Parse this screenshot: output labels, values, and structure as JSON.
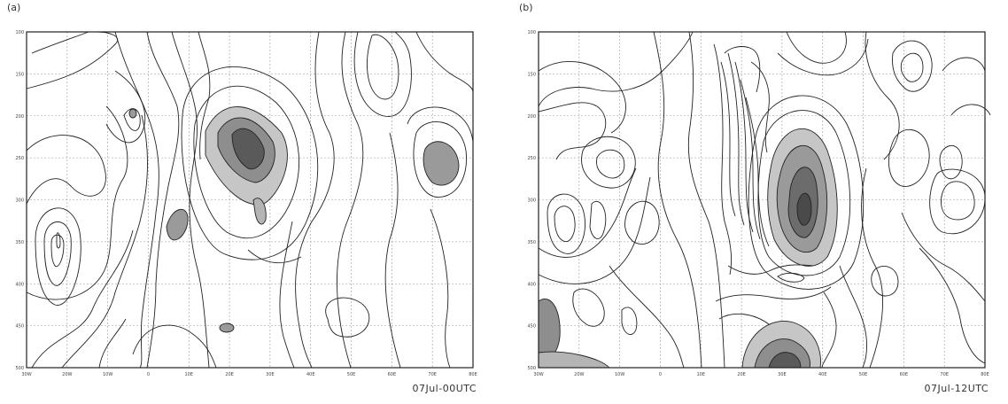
{
  "panels": [
    {
      "label": "(a)",
      "timestamp": "07Jul-00UTC"
    },
    {
      "label": "(b)",
      "timestamp": "07Jul-12UTC"
    }
  ],
  "chart_data": [
    {
      "type": "contour",
      "x_ticks": [
        "30W",
        "20W",
        "10W",
        "0",
        "10E",
        "20E",
        "30E",
        "40E",
        "50E",
        "60E",
        "70E",
        "80E"
      ],
      "y_ticks": [
        "100",
        "150",
        "200",
        "250",
        "300",
        "350",
        "400",
        "450",
        "500"
      ],
      "y_scale": "linear, pressure decreasing upward",
      "grid": true,
      "shading": "darker grey = higher values"
    },
    {
      "type": "contour",
      "x_ticks": [
        "30W",
        "20W",
        "10W",
        "0",
        "10E",
        "20E",
        "30E",
        "40E",
        "50E",
        "60E",
        "70E",
        "80E"
      ],
      "y_ticks": [
        "100",
        "150",
        "200",
        "250",
        "300",
        "350",
        "400",
        "450",
        "500"
      ],
      "y_scale": "linear, pressure decreasing upward",
      "grid": true,
      "shading": "darker grey = higher values"
    }
  ]
}
